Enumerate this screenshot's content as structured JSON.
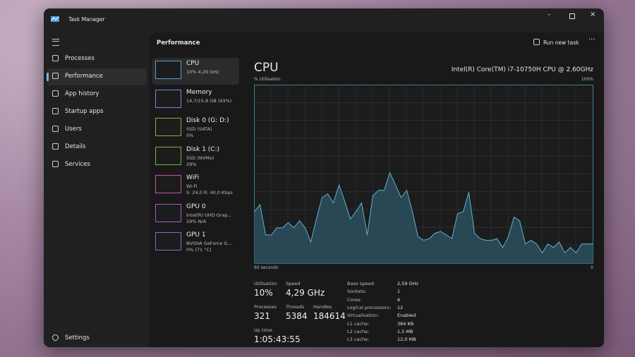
{
  "window": {
    "title": "Task Manager"
  },
  "nav": {
    "items": [
      "Processes",
      "Performance",
      "App history",
      "Startup apps",
      "Users",
      "Details",
      "Services"
    ],
    "selected": 1,
    "settings": "Settings"
  },
  "header": {
    "title": "Performance",
    "run_new_task": "Run new task"
  },
  "devices": [
    {
      "name": "CPU",
      "lines": [
        "10% 4,29 GHz"
      ],
      "color": "#4fa3c7"
    },
    {
      "name": "Memory",
      "lines": [
        "14,7/15,8 GB (93%)"
      ],
      "color": "#6b8fd6"
    },
    {
      "name": "Disk 0 (G: D:)",
      "lines": [
        "SSD (SATA)",
        "0%"
      ],
      "color": "#7cb342"
    },
    {
      "name": "Disk 1 (C:)",
      "lines": [
        "SSD (NVMe)",
        "29%"
      ],
      "color": "#7cb342"
    },
    {
      "name": "WiFi",
      "lines": [
        "Wi-Fi",
        "S: 24,0 R: 40,0 Kbps"
      ],
      "color": "#c0579e"
    },
    {
      "name": "GPU 0",
      "lines": [
        "Intel(R) UHD Grap...",
        "29% N/A"
      ],
      "color": "#a05ec7"
    },
    {
      "name": "GPU 1",
      "lines": [
        "NVIDIA GeForce G...",
        "0% (71 °C)"
      ],
      "color": "#a05ec7"
    }
  ],
  "selected_device": 0,
  "detail": {
    "title": "CPU",
    "model": "Intel(R) Core(TM) i7-10750H CPU @ 2.60GHz",
    "graph": {
      "y_label": "% Utilisation",
      "y_max_label": "100%",
      "x_left_label": "60 seconds",
      "x_right_label": "0",
      "ylim": [
        0,
        100
      ],
      "values": [
        29,
        33,
        16,
        16,
        20,
        20,
        23,
        20,
        24,
        20,
        12,
        25,
        37,
        39,
        34,
        44,
        35,
        25,
        29,
        34,
        16,
        38,
        41,
        41,
        51,
        44,
        37,
        41,
        29,
        15,
        13,
        14,
        17,
        18,
        16,
        14,
        28,
        29,
        40,
        17,
        14,
        13,
        13,
        14,
        9,
        15,
        26,
        24,
        11,
        13,
        11,
        6,
        11,
        9,
        12,
        6,
        9,
        6,
        11,
        11,
        11
      ]
    },
    "stats": [
      {
        "label": "Utilisation",
        "value": "10%"
      },
      {
        "label": "Speed",
        "value": "4,29 GHz"
      },
      {
        "label": "Processes",
        "value": "321"
      },
      {
        "label": "Threads",
        "value": "5384"
      },
      {
        "label": "Handles",
        "value": "184614"
      },
      {
        "label": "Up time",
        "value": "1:05:43:55"
      }
    ],
    "specs": [
      {
        "label": "Base speed:",
        "value": "2,59 GHz"
      },
      {
        "label": "Sockets:",
        "value": "1"
      },
      {
        "label": "Cores:",
        "value": "6"
      },
      {
        "label": "Logical processors:",
        "value": "12"
      },
      {
        "label": "Virtualisation:",
        "value": "Enabled"
      },
      {
        "label": "L1 cache:",
        "value": "384 KB"
      },
      {
        "label": "L2 cache:",
        "value": "1,5 MB"
      },
      {
        "label": "L3 cache:",
        "value": "12,0 MB"
      }
    ]
  }
}
